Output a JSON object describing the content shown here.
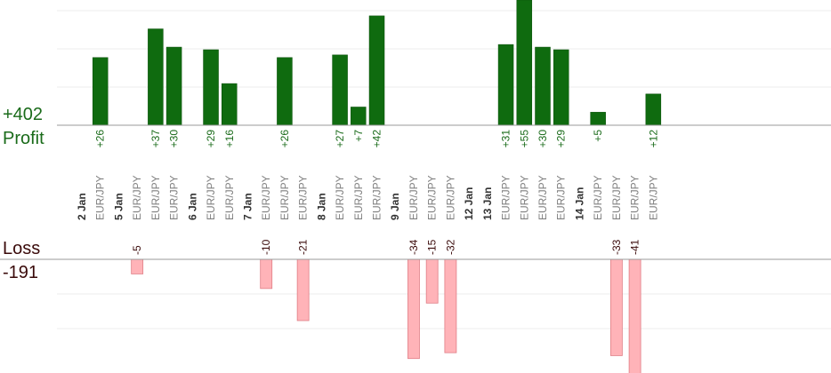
{
  "summary": {
    "profit_total": "+402",
    "profit_label": "Profit",
    "loss_label": "Loss",
    "loss_total": "-191"
  },
  "colors": {
    "profit_bar": "#0f6b0f",
    "profit_text": "#1a6b1a",
    "loss_bar": "#ffb3b8",
    "loss_text": "#3a0a0a",
    "day_text": "#333333",
    "pair_text": "#808080"
  },
  "chart_data": {
    "type": "bar",
    "profit_ylim": [
      0,
      44
    ],
    "loss_ylim": [
      0,
      35
    ],
    "columns": [
      {
        "kind": "day",
        "text": "2 Jan"
      },
      {
        "kind": "trade",
        "text": "EUR/JPY",
        "value": 26,
        "label": "+26"
      },
      {
        "kind": "day",
        "text": "5 Jan"
      },
      {
        "kind": "trade",
        "text": "EUR/JPY",
        "value": -5,
        "label": "-5"
      },
      {
        "kind": "trade",
        "text": "EUR/JPY",
        "value": 37,
        "label": "+37"
      },
      {
        "kind": "trade",
        "text": "EUR/JPY",
        "value": 30,
        "label": "+30"
      },
      {
        "kind": "day",
        "text": "6 Jan"
      },
      {
        "kind": "trade",
        "text": "EUR/JPY",
        "value": 29,
        "label": "+29"
      },
      {
        "kind": "trade",
        "text": "EUR/JPY",
        "value": 16,
        "label": "+16"
      },
      {
        "kind": "day",
        "text": "7 Jan"
      },
      {
        "kind": "trade",
        "text": "EUR/JPY",
        "value": -10,
        "label": "-10"
      },
      {
        "kind": "trade",
        "text": "EUR/JPY",
        "value": 26,
        "label": "+26"
      },
      {
        "kind": "trade",
        "text": "EUR/JPY",
        "value": -21,
        "label": "-21"
      },
      {
        "kind": "day",
        "text": "8 Jan"
      },
      {
        "kind": "trade",
        "text": "EUR/JPY",
        "value": 27,
        "label": "+27"
      },
      {
        "kind": "trade",
        "text": "EUR/JPY",
        "value": 7,
        "label": "+7"
      },
      {
        "kind": "trade",
        "text": "EUR/JPY",
        "value": 42,
        "label": "+42"
      },
      {
        "kind": "day",
        "text": "9 Jan"
      },
      {
        "kind": "trade",
        "text": "EUR/JPY",
        "value": -34,
        "label": "-34"
      },
      {
        "kind": "trade",
        "text": "EUR/JPY",
        "value": -15,
        "label": "-15"
      },
      {
        "kind": "trade",
        "text": "EUR/JPY",
        "value": -32,
        "label": "-32"
      },
      {
        "kind": "day",
        "text": "12 Jan"
      },
      {
        "kind": "day",
        "text": "13 Jan"
      },
      {
        "kind": "trade",
        "text": "EUR/JPY",
        "value": 31,
        "label": "+31"
      },
      {
        "kind": "trade",
        "text": "EUR/JPY",
        "value": 55,
        "label": "+55"
      },
      {
        "kind": "trade",
        "text": "EUR/JPY",
        "value": 30,
        "label": "+30"
      },
      {
        "kind": "trade",
        "text": "EUR/JPY",
        "value": 29,
        "label": "+29"
      },
      {
        "kind": "day",
        "text": "14 Jan"
      },
      {
        "kind": "trade",
        "text": "EUR/JPY",
        "value": 5,
        "label": "+5"
      },
      {
        "kind": "trade",
        "text": "EUR/JPY",
        "value": -33,
        "label": "-33"
      },
      {
        "kind": "trade",
        "text": "EUR/JPY",
        "value": -41,
        "label": "-41"
      },
      {
        "kind": "trade",
        "text": "EUR/JPY",
        "value": 12,
        "label": "+12"
      }
    ]
  }
}
